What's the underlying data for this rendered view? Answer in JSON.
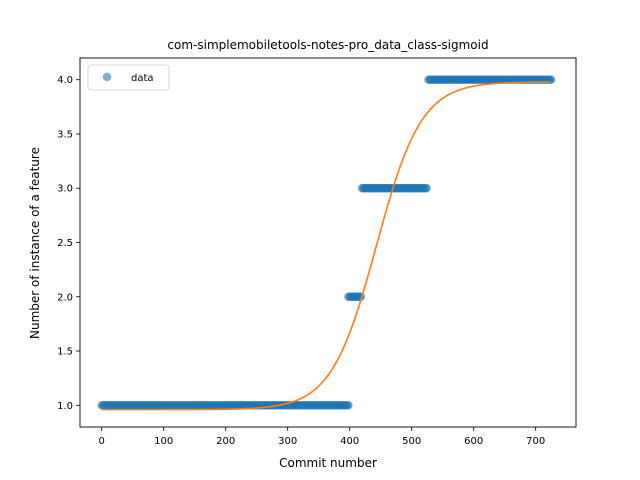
{
  "chart_data": {
    "type": "scatter",
    "title": "com-simplemobiletools-notes-pro_data_class-sigmoid",
    "xlabel": "Commit number",
    "ylabel": "Number of instance of a feature",
    "xlim": [
      -35,
      765
    ],
    "ylim": [
      0.8,
      4.2
    ],
    "xticks": [
      0,
      100,
      200,
      300,
      400,
      500,
      600,
      700
    ],
    "yticks": [
      1.0,
      1.5,
      2.0,
      2.5,
      3.0,
      3.5,
      4.0
    ],
    "xtick_labels": [
      "0",
      "100",
      "200",
      "300",
      "400",
      "500",
      "600",
      "700"
    ],
    "ytick_labels": [
      "1.0",
      "1.5",
      "2.0",
      "2.5",
      "3.0",
      "3.5",
      "4.0"
    ],
    "grid": false,
    "legend": {
      "position": "upper-left",
      "entries": [
        "data"
      ]
    },
    "colors": {
      "data": "#1f77b4",
      "fit": "#ff7f0e"
    },
    "series": [
      {
        "name": "data",
        "kind": "scatter",
        "segments": [
          {
            "x_start": 0,
            "x_end": 398,
            "y": 1.0
          },
          {
            "x_start": 398,
            "x_end": 418,
            "y": 2.0
          },
          {
            "x_start": 420,
            "x_end": 525,
            "y": 3.0
          },
          {
            "x_start": 527,
            "x_end": 725,
            "y": 4.0
          }
        ]
      },
      {
        "kind": "line",
        "model": "sigmoid",
        "params": {
          "lower": 0.96,
          "upper": 3.98,
          "midpoint": 443,
          "steepness": 0.0275
        },
        "x_range": [
          0,
          725
        ]
      }
    ]
  }
}
